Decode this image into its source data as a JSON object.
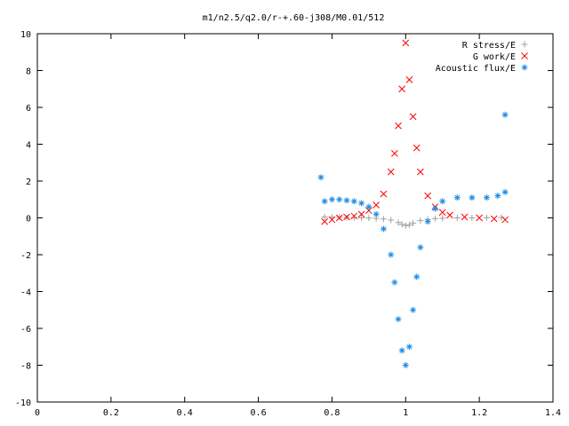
{
  "chart_data": {
    "type": "scatter",
    "title": "m1/n2.5/q2.0/r-+.60-j308/M0.01/512",
    "xlabel": "",
    "ylabel": "",
    "xlim": [
      0,
      1.4
    ],
    "ylim": [
      -10,
      10
    ],
    "x_ticks": [
      "0",
      "0.2",
      "0.4",
      "0.6",
      "0.8",
      "1",
      "1.2",
      "1.4"
    ],
    "y_ticks": [
      "-10",
      "-8",
      "-6",
      "-4",
      "-2",
      "0",
      "2",
      "4",
      "6",
      "8",
      "10"
    ],
    "legend_position": "top-right",
    "grid": false,
    "series": [
      {
        "name": "R stress/E",
        "marker": "+",
        "color": "#a0a0a0",
        "points": [
          [
            0.78,
            0.05
          ],
          [
            0.8,
            0.04
          ],
          [
            0.82,
            0.03
          ],
          [
            0.84,
            0.02
          ],
          [
            0.86,
            0.01
          ],
          [
            0.88,
            0.0
          ],
          [
            0.9,
            -0.01
          ],
          [
            0.92,
            -0.03
          ],
          [
            0.94,
            -0.06
          ],
          [
            0.96,
            -0.12
          ],
          [
            0.98,
            -0.25
          ],
          [
            0.99,
            -0.35
          ],
          [
            1.0,
            -0.42
          ],
          [
            1.01,
            -0.38
          ],
          [
            1.02,
            -0.28
          ],
          [
            1.04,
            -0.15
          ],
          [
            1.06,
            -0.08
          ],
          [
            1.08,
            -0.04
          ],
          [
            1.1,
            -0.02
          ],
          [
            1.14,
            0.0
          ],
          [
            1.18,
            0.0
          ],
          [
            1.22,
            0.01
          ],
          [
            1.26,
            0.02
          ]
        ]
      },
      {
        "name": "G work/E",
        "marker": "x",
        "color": "#ff0000",
        "points": [
          [
            0.78,
            -0.2
          ],
          [
            0.8,
            -0.1
          ],
          [
            0.82,
            0.0
          ],
          [
            0.84,
            0.05
          ],
          [
            0.86,
            0.1
          ],
          [
            0.88,
            0.2
          ],
          [
            0.9,
            0.4
          ],
          [
            0.92,
            0.7
          ],
          [
            0.94,
            1.3
          ],
          [
            0.96,
            2.5
          ],
          [
            0.97,
            3.5
          ],
          [
            0.98,
            5.0
          ],
          [
            0.99,
            7.0
          ],
          [
            1.0,
            9.5
          ],
          [
            1.01,
            7.5
          ],
          [
            1.02,
            5.5
          ],
          [
            1.03,
            3.8
          ],
          [
            1.04,
            2.5
          ],
          [
            1.06,
            1.2
          ],
          [
            1.08,
            0.6
          ],
          [
            1.1,
            0.3
          ],
          [
            1.12,
            0.15
          ],
          [
            1.16,
            0.05
          ],
          [
            1.2,
            0.0
          ],
          [
            1.24,
            -0.05
          ],
          [
            1.27,
            -0.1
          ]
        ]
      },
      {
        "name": "Acoustic flux/E",
        "marker": "*",
        "color": "#1a8ae6",
        "points": [
          [
            0.77,
            2.2
          ],
          [
            0.78,
            0.9
          ],
          [
            0.8,
            1.0
          ],
          [
            0.82,
            1.0
          ],
          [
            0.84,
            0.95
          ],
          [
            0.86,
            0.9
          ],
          [
            0.88,
            0.8
          ],
          [
            0.9,
            0.6
          ],
          [
            0.92,
            0.2
          ],
          [
            0.94,
            -0.6
          ],
          [
            0.96,
            -2.0
          ],
          [
            0.97,
            -3.5
          ],
          [
            0.98,
            -5.5
          ],
          [
            0.99,
            -7.2
          ],
          [
            1.0,
            -8.0
          ],
          [
            1.01,
            -7.0
          ],
          [
            1.02,
            -5.0
          ],
          [
            1.03,
            -3.2
          ],
          [
            1.04,
            -1.6
          ],
          [
            1.06,
            -0.2
          ],
          [
            1.08,
            0.5
          ],
          [
            1.1,
            0.9
          ],
          [
            1.14,
            1.1
          ],
          [
            1.18,
            1.1
          ],
          [
            1.22,
            1.1
          ],
          [
            1.25,
            1.2
          ],
          [
            1.27,
            1.4
          ],
          [
            1.27,
            5.6
          ]
        ]
      }
    ]
  }
}
